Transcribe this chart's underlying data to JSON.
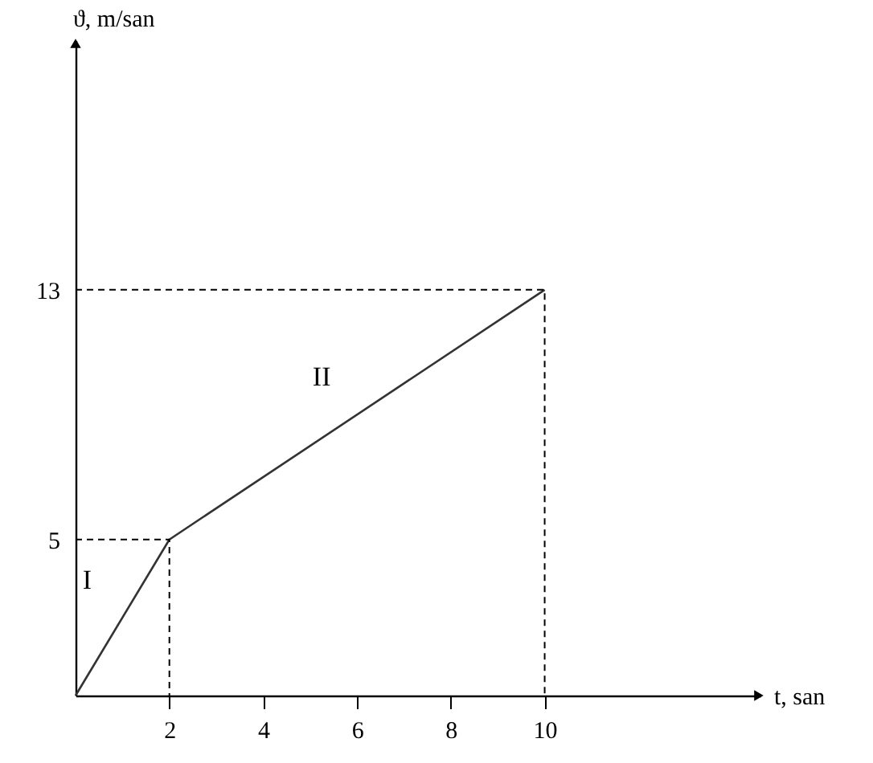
{
  "chart_data": {
    "type": "line",
    "xlabel": "t, san",
    "ylabel": "ϑ, m/san",
    "xlim": [
      0,
      14.6
    ],
    "ylim": [
      0,
      21
    ],
    "xticks": [
      2,
      4,
      6,
      8,
      10
    ],
    "yticks": [
      5,
      13
    ],
    "grid": false,
    "marker": "none",
    "series": [
      {
        "x": [
          0,
          2,
          10
        ],
        "values": [
          0,
          5,
          13
        ],
        "color": "#333333",
        "line_style": "solid"
      },
      {
        "x": [
          0,
          2,
          2
        ],
        "values": [
          5,
          5,
          0
        ],
        "color": "#000000",
        "line_style": "dashed"
      },
      {
        "x": [
          0,
          10,
          10
        ],
        "values": [
          13,
          13,
          0
        ],
        "color": "#000000",
        "line_style": "dashed"
      }
    ],
    "annotations": [
      "I",
      "II"
    ]
  }
}
